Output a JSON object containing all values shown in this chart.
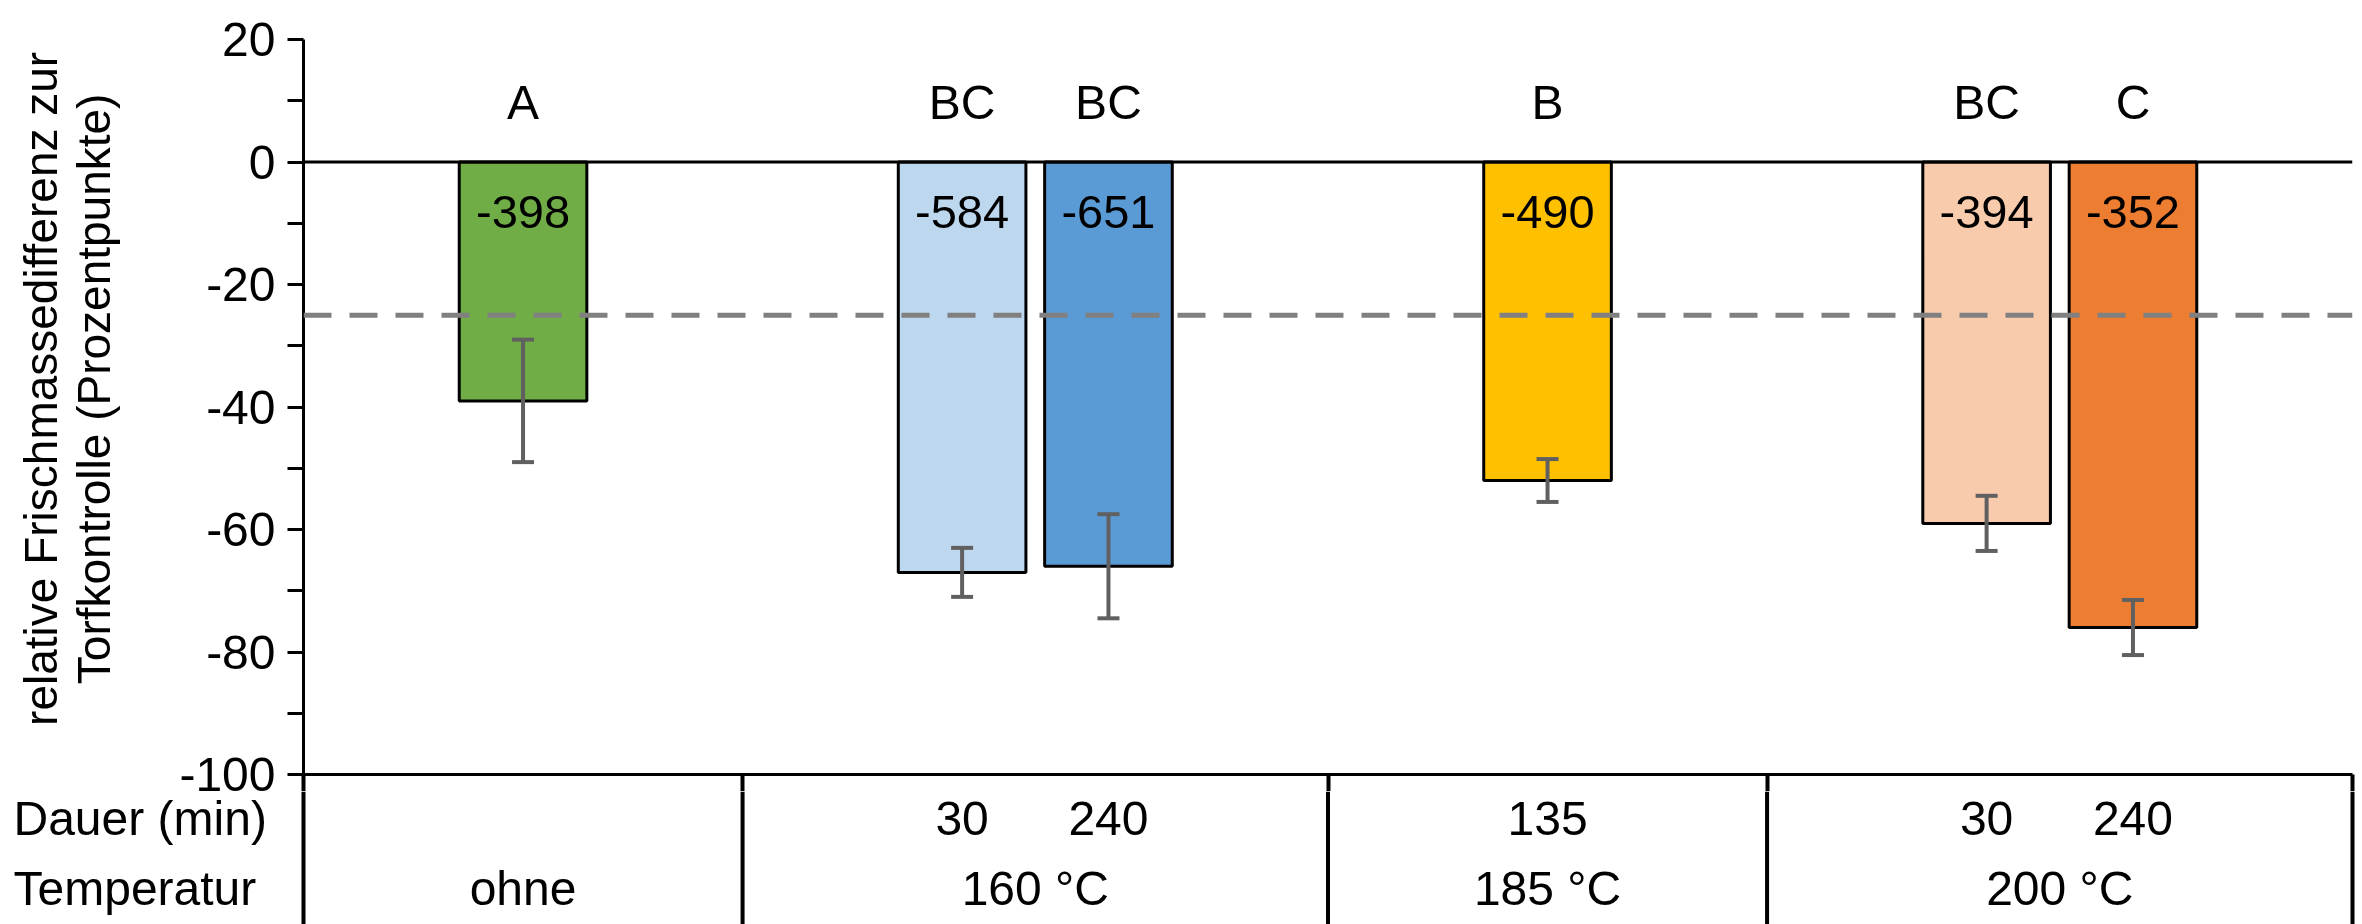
{
  "chart_data": {
    "type": "bar",
    "ylabel": "relative Frischmassedifferenz zur Torfkontrolle (Prozentpunkte)",
    "categories": [
      null,
      null,
      null,
      null,
      "30",
      "240",
      null,
      null,
      "135",
      null,
      null,
      "30",
      "240",
      null
    ],
    "values": [
      null,
      -39,
      null,
      null,
      -67,
      -66,
      null,
      null,
      -52,
      null,
      null,
      -59,
      -76,
      null
    ],
    "colors": [
      null,
      "#70ad47",
      null,
      null,
      "#bdd7ee",
      "#5b9bd5",
      null,
      null,
      "#ffc000",
      null,
      null,
      "#f8cbad",
      "#ed7d31",
      null
    ],
    "errors": [
      null,
      10,
      null,
      null,
      4,
      8.5,
      null,
      null,
      3.5,
      null,
      null,
      4.5,
      4.5,
      null
    ],
    "ylim": [
      -100,
      20
    ],
    "yticks": [
      20,
      {
        "value": 10,
        "label": null
      },
      0,
      {
        "value": -10,
        "label": null
      },
      -20,
      {
        "value": -30,
        "label": null
      },
      -40,
      {
        "value": -50,
        "label": null
      },
      -60,
      {
        "value": -70,
        "label": null
      },
      -80,
      {
        "value": -90,
        "label": null
      },
      -100
    ],
    "ref_lines": [
      {
        "axis": "y",
        "value": -25,
        "color": "#808080",
        "line_style": "dashed"
      }
    ],
    "annotations": [
      "A",
      "BC",
      "BC",
      "B",
      "BC",
      "C",
      "-398",
      "-584",
      "-651",
      "-490",
      "-394",
      "-352",
      "Dauer (min)",
      "Temperatur",
      "ohne",
      "160 °C",
      "185 °C",
      "200 °C"
    ]
  }
}
